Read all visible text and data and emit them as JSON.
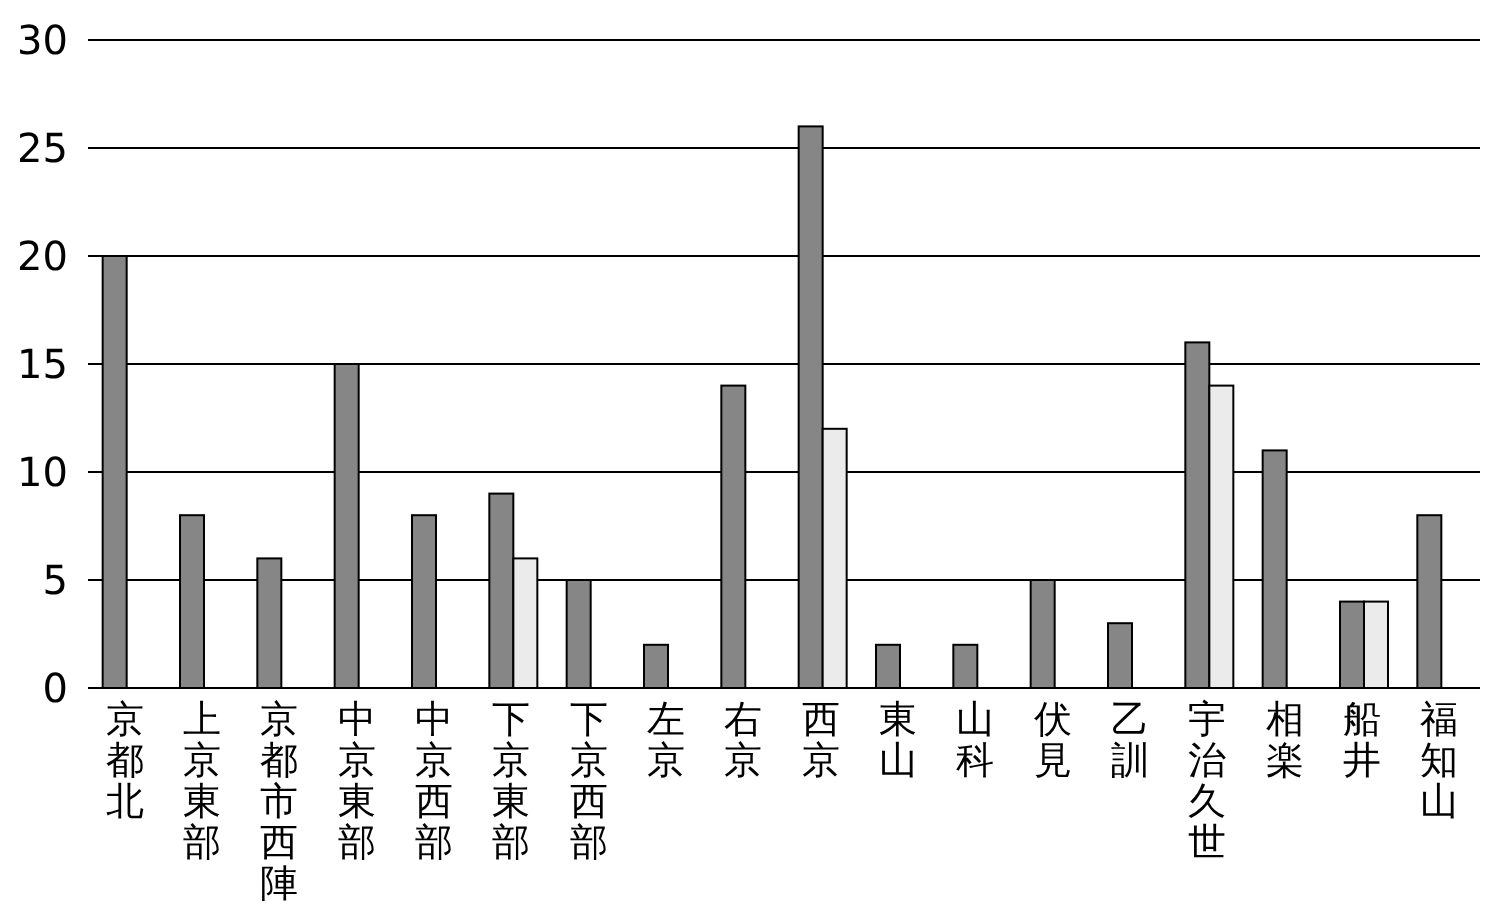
{
  "chart_data": {
    "type": "bar",
    "categories": [
      "京都北",
      "上京東部",
      "京都市西陣",
      "中京東部",
      "中京西部",
      "下京東部",
      "下京西部",
      "左京",
      "右京",
      "西京",
      "東山",
      "山科",
      "伏見",
      "乙訓",
      "宇治久世",
      "相楽",
      "船井",
      "福知山"
    ],
    "series": [
      {
        "color": "#868686",
        "values": [
          20,
          8,
          6,
          15,
          8,
          9,
          5,
          2,
          14,
          26,
          2,
          2,
          5,
          3,
          16,
          11,
          4,
          8
        ]
      },
      {
        "color": "#ebebeb",
        "values": [
          null,
          null,
          null,
          null,
          null,
          6,
          null,
          null,
          null,
          12,
          null,
          null,
          null,
          null,
          14,
          null,
          4,
          null
        ]
      }
    ],
    "ylim": [
      0,
      30
    ],
    "yticks": [
      0,
      5,
      10,
      15,
      20,
      25,
      30
    ],
    "grid": "y"
  }
}
